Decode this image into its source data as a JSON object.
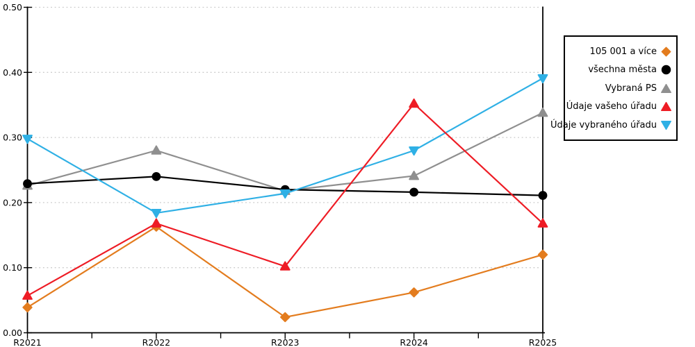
{
  "chart_data": {
    "type": "line",
    "title": "",
    "xlabel": "",
    "ylabel": "",
    "categories": [
      "R2021",
      "R2022",
      "R2023",
      "R2024",
      "R2025"
    ],
    "ylim": [
      0,
      0.5
    ],
    "yticks": [
      0,
      0.1,
      0.2,
      0.3,
      0.4,
      0.5
    ],
    "ytick_labels": [
      "0.00",
      "0.10",
      "0.20",
      "0.30",
      "0.40",
      "0.50"
    ],
    "grid": "dotted-horizontal",
    "gridline_color": "#C9C9C9",
    "axis_color": "#000000",
    "legend_position": "right-outside",
    "series": [
      {
        "name": "105 001 a více",
        "color": "#E37C1E",
        "marker": "diamond",
        "values": [
          0.039,
          0.163,
          0.024,
          0.062,
          0.12
        ]
      },
      {
        "name": "všechna města",
        "color": "#000000",
        "marker": "circle",
        "values": [
          0.229,
          0.24,
          0.22,
          0.216,
          0.211
        ]
      },
      {
        "name": "Vybraná PS",
        "color": "#8F8F8F",
        "marker": "triangle-up",
        "values": [
          0.226,
          0.28,
          0.218,
          0.241,
          0.338
        ]
      },
      {
        "name": "Údaje vašeho úřadu",
        "color": "#EE1C25",
        "marker": "triangle-up",
        "values": [
          0.057,
          0.168,
          0.102,
          0.352,
          0.168
        ]
      },
      {
        "name": "Údaje vybraného úřadu",
        "color": "#2FB0E5",
        "marker": "triangle-down",
        "values": [
          0.298,
          0.184,
          0.214,
          0.28,
          0.391
        ]
      }
    ]
  }
}
